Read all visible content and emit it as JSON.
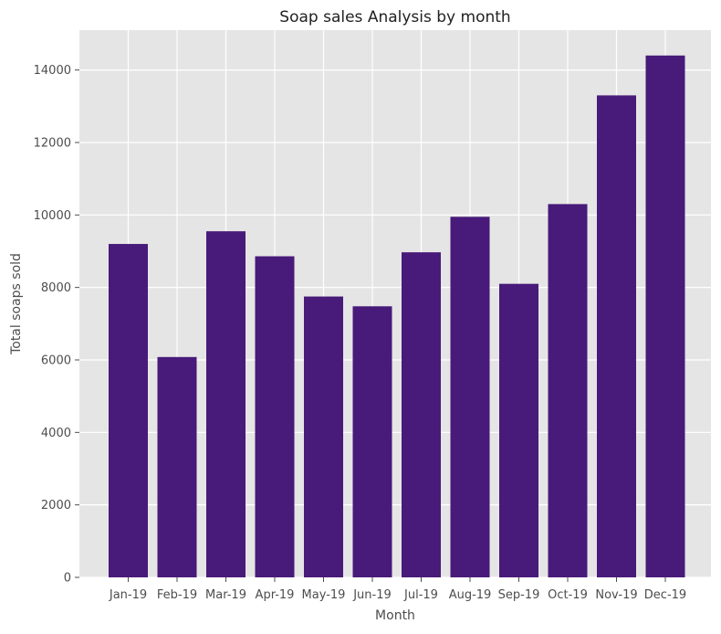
{
  "chart_data": {
    "type": "bar",
    "title": "Soap sales Analysis by month",
    "xlabel": "Month",
    "ylabel": "Total soaps sold",
    "categories": [
      "Jan-19",
      "Feb-19",
      "Mar-19",
      "Apr-19",
      "May-19",
      "Jun-19",
      "Jul-19",
      "Aug-19",
      "Sep-19",
      "Oct-19",
      "Nov-19",
      "Dec-19"
    ],
    "values": [
      9200,
      6080,
      9550,
      8860,
      7750,
      7480,
      8970,
      9950,
      8100,
      10300,
      13300,
      14400
    ],
    "ylim": [
      0,
      15100
    ],
    "yticks": [
      0,
      2000,
      4000,
      6000,
      8000,
      10000,
      12000,
      14000
    ],
    "grid": true,
    "colors": {
      "bar": "#481a79",
      "plot_background": "#e5e5e5",
      "grid": "#ffffff"
    }
  }
}
